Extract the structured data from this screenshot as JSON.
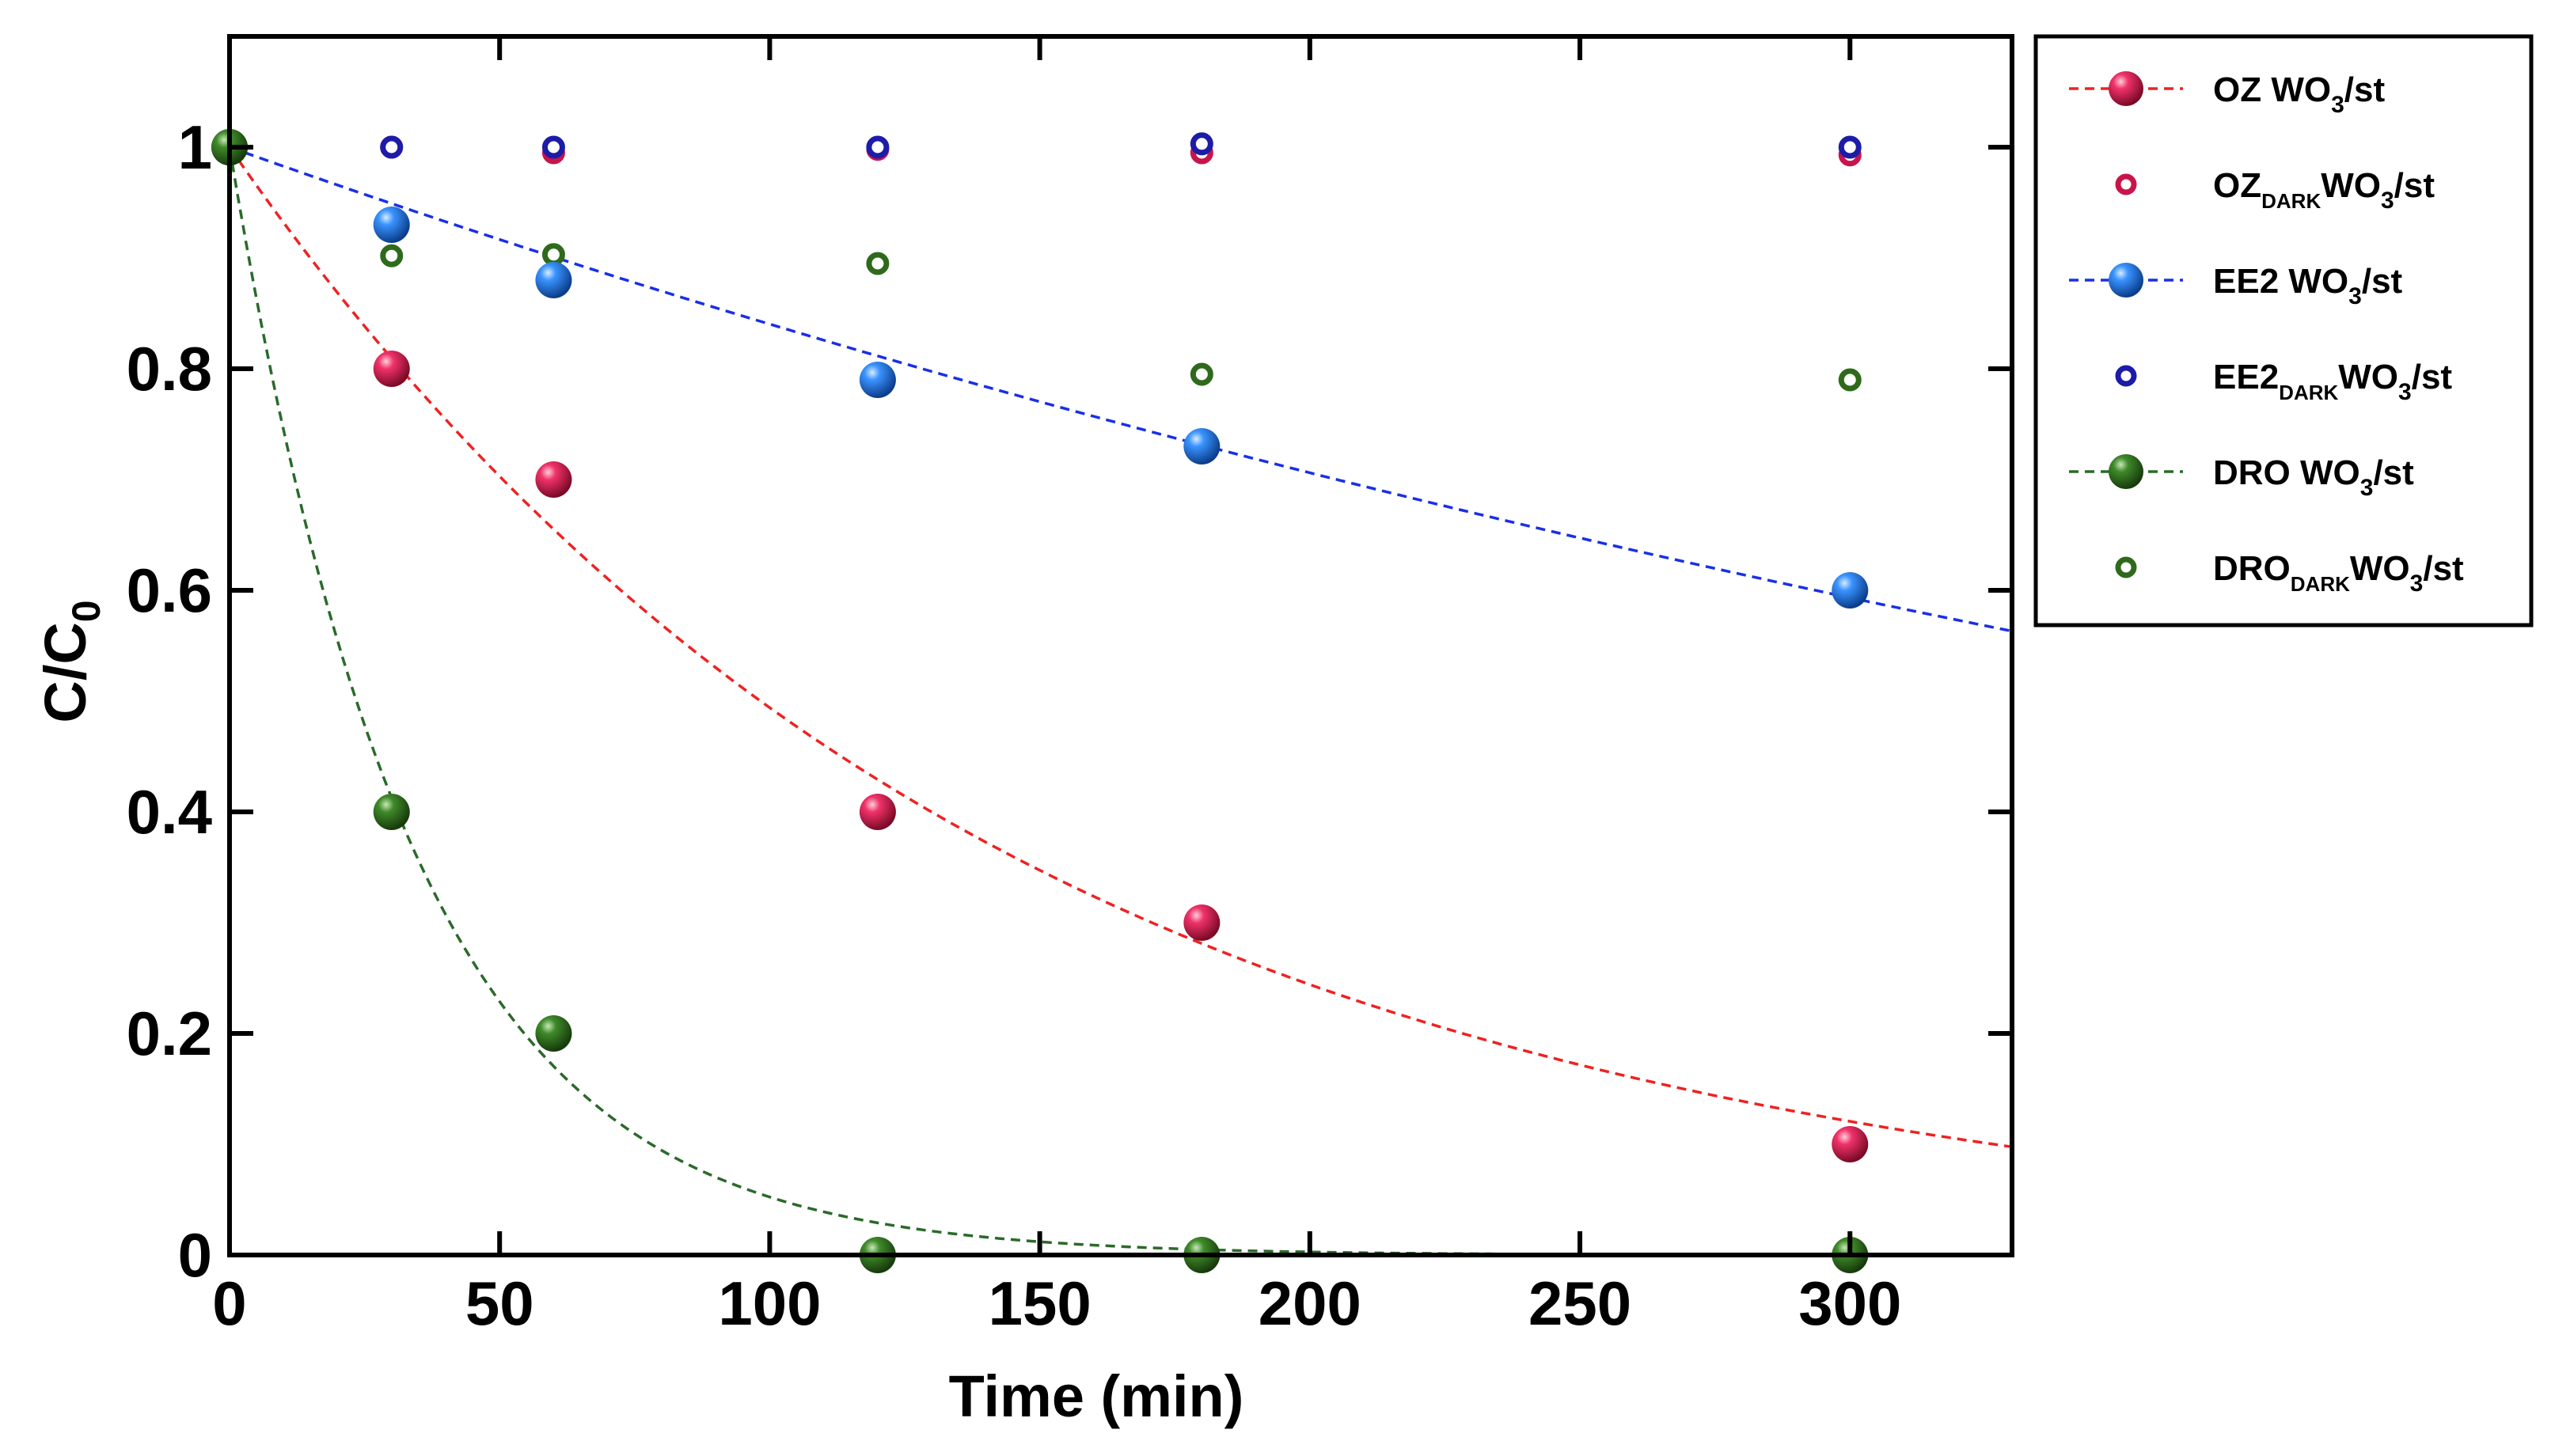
{
  "chart_data": {
    "type": "scatter",
    "title": "",
    "xlabel": "Time (min)",
    "ylabel_main": "C/C",
    "ylabel_sub": "0",
    "xlim": [
      0,
      330
    ],
    "ylim": [
      0,
      1.1
    ],
    "xticks": [
      0,
      50,
      100,
      150,
      200,
      250,
      300
    ],
    "xtick_labels": [
      "0",
      "50",
      "100",
      "150",
      "200",
      "250",
      "300"
    ],
    "yticks": [
      0,
      0.2,
      0.4,
      0.6,
      0.8,
      1
    ],
    "ytick_labels": [
      "0",
      "0.2",
      "0.4",
      "0.6",
      "0.8",
      "1"
    ],
    "grid": false,
    "legend_position": "outside-right-top",
    "series": [
      {
        "name": "OZ WO3/st",
        "label_main": "OZ WO",
        "label_sub": "3",
        "label_tail": "/st",
        "marker": "ball",
        "color": "#e8174f",
        "fit_color": "#ee2222",
        "fit_k": 0.00705,
        "x": [
          0,
          30,
          60,
          120,
          180,
          300
        ],
        "y": [
          1,
          0.8,
          0.7,
          0.4,
          0.3,
          0.1
        ]
      },
      {
        "name": "OZ DARK WO3/st",
        "label_main": "OZ",
        "label_dark": "DARK",
        "label_tail1": "WO",
        "label_sub": "3",
        "label_tail2": "/st",
        "marker": "ring",
        "color": "#c8144a",
        "x": [
          30,
          60,
          120,
          180,
          300
        ],
        "y": [
          1,
          0.995,
          0.998,
          0.995,
          0.993
        ]
      },
      {
        "name": "EE2 WO3/st",
        "label_main": "EE2 WO",
        "label_sub": "3",
        "label_tail": "/st",
        "marker": "ball",
        "color": "#1e78e6",
        "fit_color": "#1a2fe6",
        "fit_k": 0.00174,
        "x": [
          0,
          30,
          60,
          120,
          180,
          300
        ],
        "y": [
          1,
          0.93,
          0.88,
          0.79,
          0.73,
          0.6
        ]
      },
      {
        "name": "EE2 DARK WO3/st",
        "label_main": "EE2",
        "label_dark": "DARK",
        "label_tail1": "WO",
        "label_sub": "3",
        "label_tail2": "/st",
        "marker": "ring",
        "color": "#1c1ca8",
        "x": [
          30,
          60,
          120,
          180,
          300
        ],
        "y": [
          1,
          1,
          1,
          1.003,
          1
        ]
      },
      {
        "name": "DRO WO3/st",
        "label_main": "DRO WO",
        "label_sub": "3",
        "label_tail": "/st",
        "marker": "ball",
        "color": "#2f6a1c",
        "fit_color": "#2a6a2a",
        "fit_k": 0.0295,
        "x": [
          0,
          30,
          60,
          120,
          180,
          300
        ],
        "y": [
          1,
          0.4,
          0.2,
          0,
          0,
          0
        ]
      },
      {
        "name": "DRO DARK WO3/st",
        "label_main": "DRO",
        "label_dark": "DARK",
        "label_tail1": "WO",
        "label_sub": "3",
        "label_tail2": "/st",
        "marker": "ring",
        "color": "#2f6a1c",
        "x": [
          30,
          60,
          120,
          180,
          300
        ],
        "y": [
          0.902,
          0.903,
          0.895,
          0.795,
          0.79
        ]
      }
    ]
  }
}
